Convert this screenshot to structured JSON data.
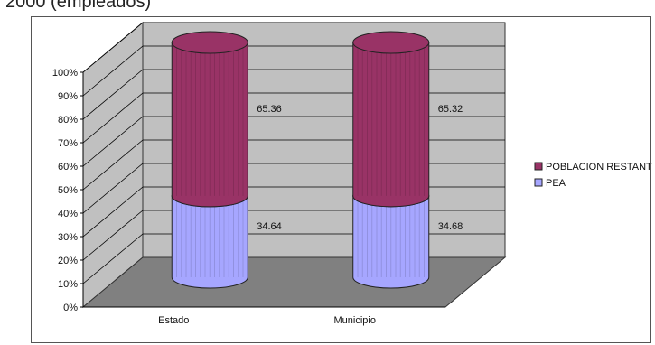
{
  "header": {
    "text": "2000 (empleados)"
  },
  "chart_data": {
    "type": "bar",
    "stacked": true,
    "percent_stacked": true,
    "three_d": true,
    "categories": [
      "Estado",
      "Municipio"
    ],
    "series": [
      {
        "name": "PEA",
        "values": [
          34.64,
          34.68
        ],
        "color": "#a6a6ff"
      },
      {
        "name": "POBLACION RESTANT",
        "values": [
          65.36,
          65.32
        ],
        "color": "#993366"
      }
    ],
    "y_ticks": [
      "0%",
      "10%",
      "20%",
      "30%",
      "40%",
      "50%",
      "60%",
      "70%",
      "80%",
      "90%",
      "100%"
    ],
    "ylim": [
      0,
      100
    ],
    "grid": true,
    "legend_position": "right",
    "colors": {
      "wall": "#c0c0c0",
      "floor": "#808080",
      "grid": "#000000"
    }
  }
}
